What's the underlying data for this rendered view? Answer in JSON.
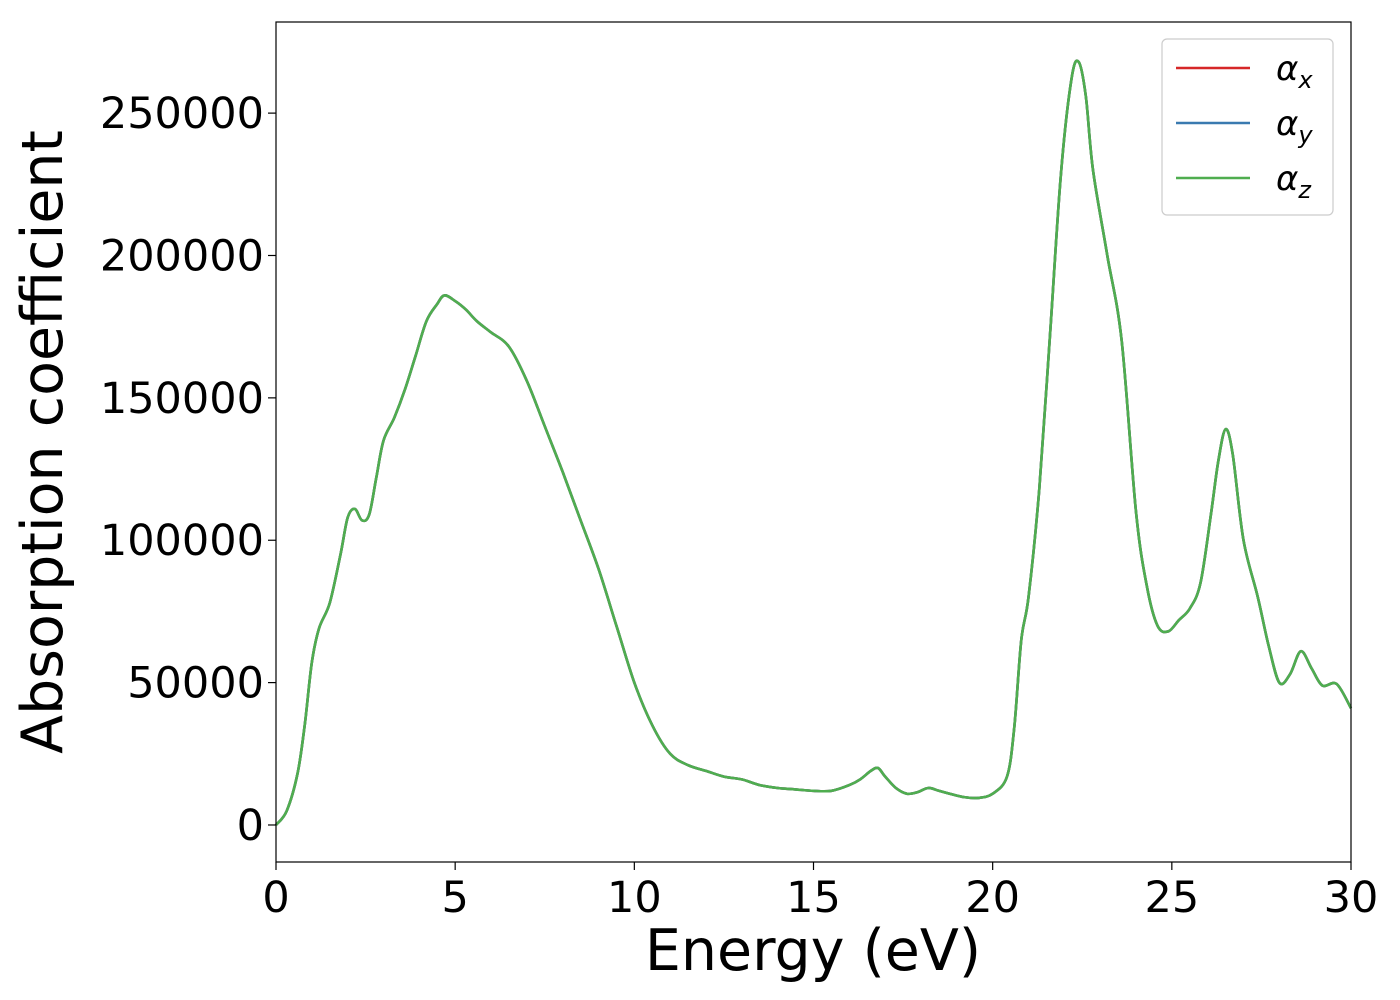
{
  "chart_data": {
    "type": "line",
    "title": "",
    "xlabel": "Energy (eV)",
    "ylabel": "Absorption coefficient",
    "xlim": [
      0,
      30
    ],
    "ylim": [
      -13000,
      282000
    ],
    "x_ticks": [
      0,
      5,
      10,
      15,
      20,
      25,
      30
    ],
    "x_tick_labels": [
      "0",
      "5",
      "10",
      "15",
      "20",
      "25",
      "30"
    ],
    "y_ticks": [
      0,
      50000,
      100000,
      150000,
      200000,
      250000
    ],
    "y_tick_labels": [
      "0",
      "50000",
      "100000",
      "150000",
      "200000",
      "250000"
    ],
    "grid": false,
    "legend_position": "top-right",
    "colors": {
      "alpha_x": "#d62728",
      "alpha_y": "#3a7ab0",
      "alpha_z": "#4fad4f"
    },
    "x": [
      0,
      0.3,
      0.6,
      0.8,
      1.0,
      1.2,
      1.5,
      1.8,
      2.0,
      2.2,
      2.4,
      2.6,
      2.8,
      3.0,
      3.3,
      3.6,
      3.9,
      4.2,
      4.5,
      4.7,
      5.0,
      5.3,
      5.6,
      6.0,
      6.5,
      7.0,
      7.5,
      8.0,
      8.5,
      9.0,
      9.5,
      10.0,
      10.5,
      11.0,
      11.5,
      12.0,
      12.5,
      13.0,
      13.5,
      14.0,
      14.5,
      15.0,
      15.5,
      16.0,
      16.3,
      16.6,
      16.8,
      17.0,
      17.3,
      17.6,
      17.9,
      18.2,
      18.5,
      18.8,
      19.2,
      19.6,
      20.0,
      20.4,
      20.6,
      20.8,
      21.0,
      21.3,
      21.6,
      21.9,
      22.2,
      22.4,
      22.6,
      22.8,
      23.2,
      23.6,
      24.0,
      24.3,
      24.6,
      24.9,
      25.2,
      25.5,
      25.8,
      26.1,
      26.3,
      26.5,
      26.7,
      27.0,
      27.4,
      27.7,
      28.0,
      28.3,
      28.6,
      28.9,
      29.2,
      29.6,
      30.0
    ],
    "series": [
      {
        "name": "α_x",
        "values": [
          0,
          5000,
          18000,
          35000,
          57000,
          69000,
          78000,
          95000,
          108000,
          111000,
          107000,
          109000,
          122000,
          135000,
          143000,
          153000,
          165000,
          177000,
          183000,
          186000,
          184000,
          181000,
          177000,
          173000,
          168000,
          156000,
          140000,
          124000,
          107000,
          90000,
          70000,
          50000,
          35000,
          25000,
          21000,
          19000,
          17000,
          16000,
          14000,
          13000,
          12500,
          12000,
          12000,
          14000,
          16000,
          19000,
          20000,
          17000,
          13000,
          11000,
          11500,
          13000,
          12000,
          11000,
          9800,
          9500,
          11000,
          17000,
          34000,
          65000,
          80000,
          118000,
          172000,
          228000,
          262000,
          268000,
          256000,
          230000,
          200000,
          170000,
          110000,
          84000,
          70000,
          68000,
          72000,
          76000,
          85000,
          110000,
          128000,
          139000,
          130000,
          100000,
          80000,
          63000,
          50000,
          53000,
          61000,
          55000,
          49000,
          49500,
          41000
        ]
      },
      {
        "name": "α_y",
        "values": [
          0,
          5000,
          18000,
          35000,
          57000,
          69000,
          78000,
          95000,
          108000,
          111000,
          107000,
          109000,
          122000,
          135000,
          143000,
          153000,
          165000,
          177000,
          183000,
          186000,
          184000,
          181000,
          177000,
          173000,
          168000,
          156000,
          140000,
          124000,
          107000,
          90000,
          70000,
          50000,
          35000,
          25000,
          21000,
          19000,
          17000,
          16000,
          14000,
          13000,
          12500,
          12000,
          12000,
          14000,
          16000,
          19000,
          20000,
          17000,
          13000,
          11000,
          11500,
          13000,
          12000,
          11000,
          9800,
          9500,
          11000,
          17000,
          34000,
          65000,
          80000,
          118000,
          172000,
          228000,
          262000,
          268000,
          256000,
          230000,
          200000,
          170000,
          110000,
          84000,
          70000,
          68000,
          72000,
          76000,
          85000,
          110000,
          128000,
          139000,
          130000,
          100000,
          80000,
          63000,
          50000,
          53000,
          61000,
          55000,
          49000,
          49500,
          41000
        ]
      },
      {
        "name": "α_z",
        "values": [
          0,
          5000,
          18000,
          35000,
          57000,
          69000,
          78000,
          95000,
          108000,
          111000,
          107000,
          109000,
          122000,
          135000,
          143000,
          153000,
          165000,
          177000,
          183000,
          186000,
          184000,
          181000,
          177000,
          173000,
          168000,
          156000,
          140000,
          124000,
          107000,
          90000,
          70000,
          50000,
          35000,
          25000,
          21000,
          19000,
          17000,
          16000,
          14000,
          13000,
          12500,
          12000,
          12000,
          14000,
          16000,
          19000,
          20000,
          17000,
          13000,
          11000,
          11500,
          13000,
          12000,
          11000,
          9800,
          9500,
          11000,
          17000,
          34000,
          65000,
          80000,
          118000,
          172000,
          228000,
          262000,
          268000,
          256000,
          230000,
          200000,
          170000,
          110000,
          84000,
          70000,
          68000,
          72000,
          76000,
          85000,
          110000,
          128000,
          139000,
          130000,
          100000,
          80000,
          63000,
          50000,
          53000,
          61000,
          55000,
          49000,
          49500,
          41000
        ]
      }
    ],
    "legend": [
      {
        "base": "α",
        "sub": "x",
        "color_key": "alpha_x"
      },
      {
        "base": "α",
        "sub": "y",
        "color_key": "alpha_y"
      },
      {
        "base": "α",
        "sub": "z",
        "color_key": "alpha_z"
      }
    ]
  }
}
